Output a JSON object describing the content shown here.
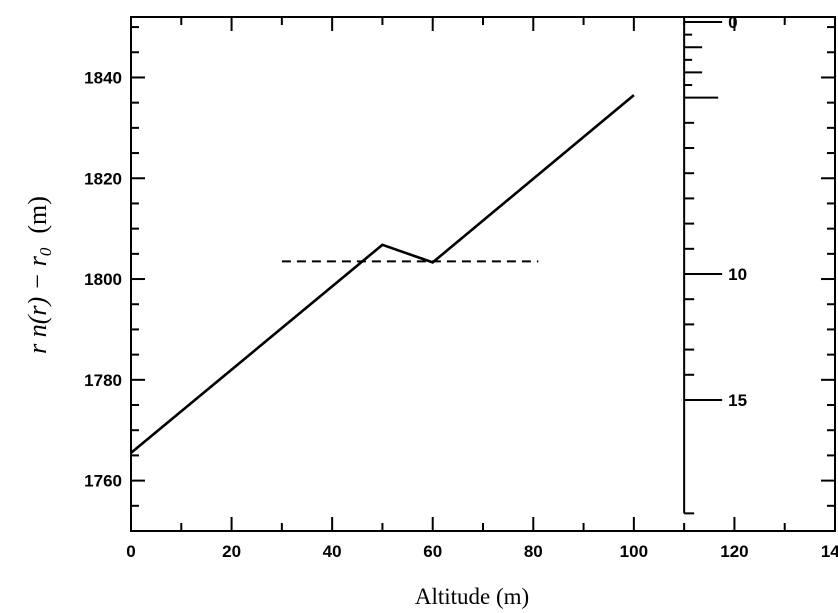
{
  "chart_data": {
    "type": "line",
    "xlabel": "Altitude (m)",
    "ylabel": {
      "main": "r n(r) − r",
      "subscript": "0",
      "unit": "(m)"
    },
    "xlim": [
      0,
      140
    ],
    "ylim": [
      1750,
      1852
    ],
    "x_ticks": [
      "0",
      "20",
      "40",
      "60",
      "80",
      "100",
      "120",
      "140"
    ],
    "y_ticks": [
      "1760",
      "1780",
      "1800",
      "1820",
      "1840"
    ],
    "series": [
      {
        "style": "solid",
        "points": [
          [
            0,
            1765.5
          ],
          [
            50,
            1806.8
          ],
          [
            60,
            1803.3
          ],
          [
            100,
            1836.5
          ]
        ]
      },
      {
        "style": "dashed",
        "points": [
          [
            30,
            1803.5
          ],
          [
            81,
            1803.5
          ]
        ]
      }
    ],
    "inset_scale": {
      "x": 110,
      "y_top": 1851,
      "y_bottom": 1753.5,
      "unit_max": 19.5,
      "labels": [
        {
          "value": 0,
          "text": "0"
        },
        {
          "value": 10,
          "text": "10"
        },
        {
          "value": 15,
          "text": "15"
        }
      ]
    },
    "grid": false
  }
}
